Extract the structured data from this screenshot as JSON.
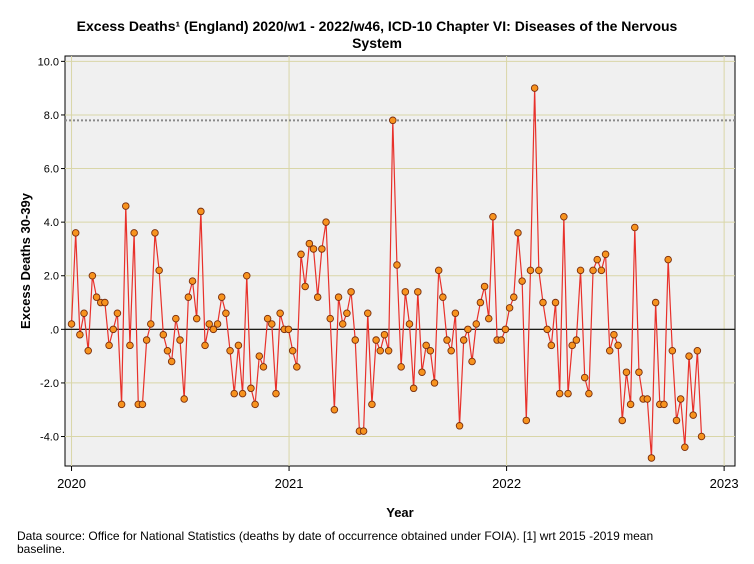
{
  "chart_data": {
    "type": "scatter",
    "title_lines": [
      "Excess Deaths¹ (England) 2020/w1 - 2022/w46, ICD-10 Chapter VI: Diseases of the Nervous",
      "System"
    ],
    "xlabel": "Year",
    "ylabel": "Excess Deaths 30-39y",
    "x_ticks": [
      {
        "value": 2020,
        "label": "2020"
      },
      {
        "value": 2021,
        "label": "2021"
      },
      {
        "value": 2022,
        "label": "2022"
      },
      {
        "value": 2023,
        "label": "2023"
      }
    ],
    "y_ticks": [
      {
        "value": 10,
        "label": "10.0"
      },
      {
        "value": 8,
        "label": "8.0"
      },
      {
        "value": 6,
        "label": "6.0"
      },
      {
        "value": 4,
        "label": "4.0"
      },
      {
        "value": 2,
        "label": "2.0"
      },
      {
        "value": 0,
        "label": ".0"
      },
      {
        "value": -2,
        "label": "-2.0"
      },
      {
        "value": -4,
        "label": "-4.0"
      }
    ],
    "xlim": [
      2019.97,
      2023.05
    ],
    "ylim": [
      -5.1,
      10.2
    ],
    "zero_line": 0,
    "reference_line": 7.8,
    "grid": true,
    "series": [
      {
        "name": "Excess Deaths 30-39y",
        "line_color": "#e8312b",
        "marker_fill": "#f7931e",
        "marker_stroke": "#7a2e0c",
        "start_year": 2020,
        "week_step": 0.01918,
        "values": [
          0.2,
          3.6,
          -0.2,
          0.6,
          -0.8,
          2.0,
          1.2,
          1.0,
          1.0,
          -0.6,
          0.0,
          0.6,
          -2.8,
          4.6,
          -0.6,
          3.6,
          -2.8,
          -2.8,
          -0.4,
          0.2,
          3.6,
          2.2,
          -0.2,
          -0.8,
          -1.2,
          0.4,
          -0.4,
          -2.6,
          1.2,
          1.8,
          0.4,
          4.4,
          -0.6,
          0.2,
          0.0,
          0.2,
          1.2,
          0.6,
          -0.8,
          -2.4,
          -0.6,
          -2.4,
          2.0,
          -2.2,
          -2.8,
          -1.0,
          -1.4,
          0.4,
          0.2,
          -2.4,
          0.6,
          0.0,
          0.0,
          -0.8,
          -1.4,
          2.8,
          1.6,
          3.2,
          3.0,
          1.2,
          3.0,
          4.0,
          0.4,
          -3.0,
          1.2,
          0.2,
          0.6,
          1.4,
          -0.4,
          -3.8,
          -3.8,
          0.6,
          -2.8,
          -0.4,
          -0.8,
          -0.2,
          -0.8,
          7.8,
          2.4,
          -1.4,
          1.4,
          0.2,
          -2.2,
          1.4,
          -1.6,
          -0.6,
          -0.8,
          -2.0,
          2.2,
          1.2,
          -0.4,
          -0.8,
          0.6,
          -3.6,
          -0.4,
          0.0,
          -1.2,
          0.2,
          1.0,
          1.6,
          0.4,
          4.2,
          -0.4,
          -0.4,
          0.0,
          0.8,
          1.2,
          3.6,
          1.8,
          -3.4,
          2.2,
          9.0,
          2.2,
          1.0,
          0.0,
          -0.6,
          1.0,
          -2.4,
          4.2,
          -2.4,
          -0.6,
          -0.4,
          2.2,
          -1.8,
          -2.4,
          2.2,
          2.6,
          2.2,
          2.8,
          -0.8,
          -0.2,
          -0.6,
          -3.4,
          -1.6,
          -2.8,
          3.8,
          -1.6,
          -2.6,
          -2.6,
          -4.8,
          1.0,
          -2.8,
          -2.8,
          2.6,
          -0.8,
          -3.4,
          -2.6,
          -4.4,
          -1.0,
          -3.2,
          -0.8,
          -4.0
        ]
      }
    ]
  },
  "footnote_lines": [
    "Data source: Office for National Statistics (deaths by date of occurrence obtained under FOIA). [1] wrt 2015 -2019 mean",
    "baseline."
  ]
}
